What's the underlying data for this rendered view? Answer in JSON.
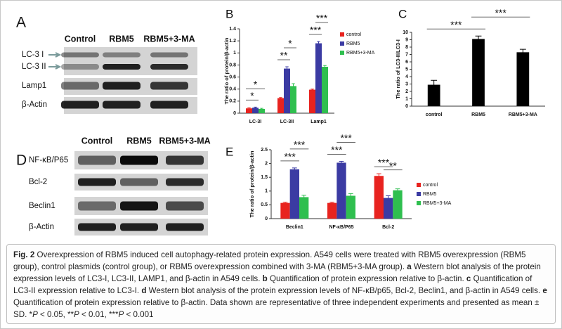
{
  "blots": [
    {
      "label": "A",
      "columns": [
        "Control",
        "RBM5",
        "RBM5+3-MA"
      ],
      "rows": [
        "LC-3 I",
        "LC-3 II",
        "Lamp1",
        "β-Actin"
      ]
    },
    {
      "label": "D",
      "columns": [
        "Control",
        "RBM5",
        "RBM5+3-MA"
      ],
      "rows": [
        "NF-κB/P65",
        "Bcl-2",
        "Beclin1",
        "β-Actin"
      ]
    }
  ],
  "chart_data": [
    {
      "type": "bar",
      "label": "B",
      "y_label": "The ratio of protein/β-actin",
      "categories": [
        "LC-3I",
        "LC-3II",
        "Lamp1"
      ],
      "series": [
        {
          "name": "control",
          "color": "#e8231f",
          "values": [
            0.08,
            0.25,
            0.39
          ],
          "errors": [
            0.01,
            0.01,
            0.01
          ]
        },
        {
          "name": "RBM5",
          "color": "#3b3ba3",
          "values": [
            0.09,
            0.74,
            1.16
          ],
          "errors": [
            0.01,
            0.03,
            0.03
          ]
        },
        {
          "name": "RBM5+3-MA",
          "color": "#2fbf4f",
          "values": [
            0.07,
            0.45,
            0.77
          ],
          "errors": [
            0.01,
            0.04,
            0.02
          ]
        }
      ],
      "ylim": [
        0,
        1.4
      ],
      "yticks": [
        0,
        0.2,
        0.4,
        0.6,
        0.8,
        1,
        1.2,
        1.4
      ],
      "legend": "right",
      "significance": [
        {
          "text": "*",
          "category": "LC-3I",
          "groups": [
            "control",
            "RBM5"
          ]
        },
        {
          "text": "*",
          "category": "LC-3I",
          "groups": [
            "control",
            "RBM5+3-MA"
          ]
        },
        {
          "text": "**",
          "category": "LC-3II",
          "groups": [
            "control",
            "RBM5"
          ]
        },
        {
          "text": "*",
          "category": "LC-3II",
          "groups": [
            "RBM5",
            "RBM5+3-MA"
          ]
        },
        {
          "text": "***",
          "category": "Lamp1",
          "groups": [
            "control",
            "RBM5"
          ]
        },
        {
          "text": "***",
          "category": "Lamp1",
          "groups": [
            "RBM5",
            "RBM5+3-MA"
          ]
        }
      ]
    },
    {
      "type": "bar",
      "label": "C",
      "y_label": "The ratio of LC3-II/LC3-I",
      "categories": [
        "control",
        "RBM5",
        "RBM5+3-MA"
      ],
      "values": [
        2.9,
        9.1,
        7.3
      ],
      "errors": [
        0.6,
        0.4,
        0.4
      ],
      "color": "#000000",
      "ylim": [
        0,
        10
      ],
      "yticks": [
        0,
        1,
        2,
        3,
        4,
        5,
        6,
        7,
        8,
        9,
        10
      ],
      "significance": [
        {
          "text": "***",
          "groups": [
            "control",
            "RBM5"
          ]
        },
        {
          "text": "***",
          "groups": [
            "RBM5",
            "RBM5+3-MA"
          ]
        }
      ]
    },
    {
      "type": "bar",
      "label": "E",
      "y_label": "The ratio of protein/β-actin",
      "categories": [
        "Beclin1",
        "NF-κB/P65",
        "Bcl-2"
      ],
      "series": [
        {
          "name": "control",
          "color": "#e8231f",
          "values": [
            0.57,
            0.57,
            1.55
          ],
          "errors": [
            0.03,
            0.03,
            0.08
          ]
        },
        {
          "name": "RBM5",
          "color": "#3b3ba3",
          "values": [
            1.79,
            2.03,
            0.75
          ],
          "errors": [
            0.05,
            0.05,
            0.08
          ]
        },
        {
          "name": "RBM5+3-MA",
          "color": "#2fbf4f",
          "values": [
            0.78,
            0.83,
            1.03
          ],
          "errors": [
            0.07,
            0.08,
            0.05
          ]
        }
      ],
      "ylim": [
        0,
        2.5
      ],
      "yticks": [
        0,
        0.5,
        1,
        1.5,
        2,
        2.5
      ],
      "legend": "right",
      "significance": [
        {
          "text": "***",
          "category": "Beclin1",
          "groups": [
            "control",
            "RBM5"
          ]
        },
        {
          "text": "***",
          "category": "Beclin1",
          "groups": [
            "RBM5",
            "RBM5+3-MA"
          ]
        },
        {
          "text": "***",
          "category": "NF-κB/P65",
          "groups": [
            "control",
            "RBM5"
          ]
        },
        {
          "text": "***",
          "category": "NF-κB/P65",
          "groups": [
            "RBM5",
            "RBM5+3-MA"
          ]
        },
        {
          "text": "***",
          "category": "Bcl-2",
          "groups": [
            "control",
            "RBM5"
          ]
        },
        {
          "text": "**",
          "category": "Bcl-2",
          "groups": [
            "RBM5",
            "RBM5+3-MA"
          ]
        }
      ]
    }
  ],
  "caption": {
    "segments": [
      {
        "text": "Fig. 2",
        "style": "bold"
      },
      {
        "text": " Overexpression of RBM5 induced cell autophagy-related protein expression. A549 cells were treated with RBM5 overexpression (RBM5 group), control plasmids (control group), or RBM5 overexpression combined with 3-MA (RBM5+3-MA group). ",
        "style": "plain"
      },
      {
        "text": "a",
        "style": "bold"
      },
      {
        "text": " Western blot analysis of the protein expression levels of LC3-I, LC3-II, LAMP1, and β-actin in A549 cells. ",
        "style": "plain"
      },
      {
        "text": "b",
        "style": "bold"
      },
      {
        "text": " Quantification of protein expression relative to β-actin. ",
        "style": "plain"
      },
      {
        "text": "c",
        "style": "bold"
      },
      {
        "text": " Quantification of LC3-II expression relative to LC3-I. ",
        "style": "plain"
      },
      {
        "text": "d",
        "style": "bold"
      },
      {
        "text": " Western blot analysis of the protein expression levels of NF-κB/p65, Bcl-2, Beclin1, and β-actin in A549 cells. ",
        "style": "plain"
      },
      {
        "text": "e",
        "style": "bold"
      },
      {
        "text": " Quantification of protein expression relative to β-actin. Data shown are representative of three independent experiments and presented as mean ± SD. *",
        "style": "plain"
      },
      {
        "text": "P",
        "style": "italic"
      },
      {
        "text": " < 0.05, **",
        "style": "plain"
      },
      {
        "text": "P",
        "style": "italic"
      },
      {
        "text": " < 0.01, ***",
        "style": "plain"
      },
      {
        "text": "P",
        "style": "italic"
      },
      {
        "text": " < 0.001",
        "style": "plain"
      }
    ]
  }
}
